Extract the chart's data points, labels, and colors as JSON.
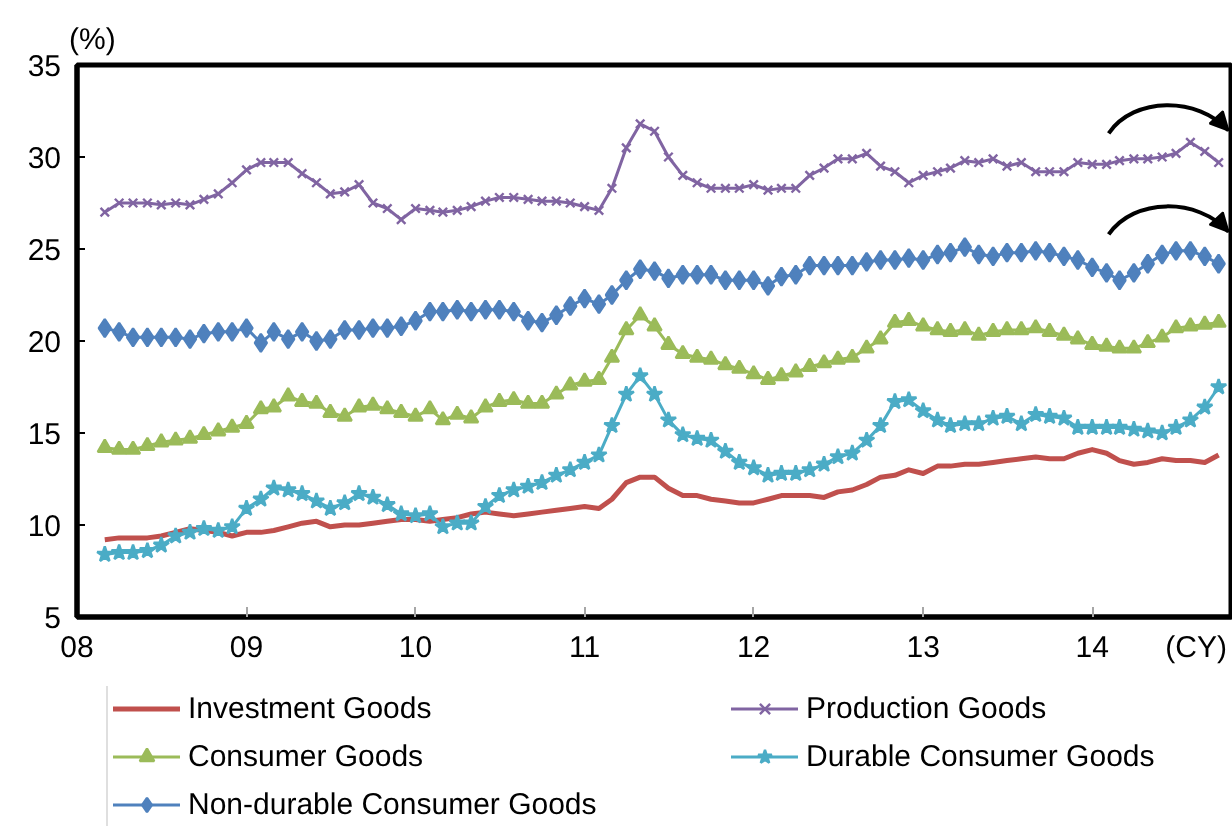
{
  "chart_data": {
    "type": "line",
    "xlabel": "(CY)",
    "ylabel": "(%)",
    "x": [
      "2008-03",
      "2008-04",
      "2008-05",
      "2008-06",
      "2008-07",
      "2008-08",
      "2008-09",
      "2008-10",
      "2008-11",
      "2008-12",
      "2009-01",
      "2009-02",
      "2009-03",
      "2009-04",
      "2009-05",
      "2009-06",
      "2009-07",
      "2009-08",
      "2009-09",
      "2009-10",
      "2009-11",
      "2009-12",
      "2010-01",
      "2010-02",
      "2010-03",
      "2010-04",
      "2010-05",
      "2010-06",
      "2010-07",
      "2010-08",
      "2010-09",
      "2010-10",
      "2010-11",
      "2010-12",
      "2011-01",
      "2011-02",
      "2011-03",
      "2011-04",
      "2011-05",
      "2011-06",
      "2011-07",
      "2011-08",
      "2011-09",
      "2011-10",
      "2011-11",
      "2011-12",
      "2012-01",
      "2012-02",
      "2012-03",
      "2012-04",
      "2012-05",
      "2012-06",
      "2012-07",
      "2012-08",
      "2012-09",
      "2012-10",
      "2012-11",
      "2012-12",
      "2013-01",
      "2013-02",
      "2013-03",
      "2013-04",
      "2013-05",
      "2013-06",
      "2013-07",
      "2013-08",
      "2013-09",
      "2013-10",
      "2013-11",
      "2013-12",
      "2014-01",
      "2014-02",
      "2014-03",
      "2014-04",
      "2014-05",
      "2014-06",
      "2014-07",
      "2014-08",
      "2014-09",
      "2014-10"
    ],
    "series": [
      {
        "name": "Investment Goods",
        "color": "#c0504d",
        "marker": "none",
        "values": [
          9.2,
          9.3,
          9.3,
          9.3,
          9.4,
          9.6,
          9.8,
          9.7,
          9.6,
          9.4,
          9.6,
          9.6,
          9.7,
          9.9,
          10.1,
          10.2,
          9.9,
          10.0,
          10.0,
          10.1,
          10.2,
          10.3,
          10.3,
          10.2,
          10.3,
          10.4,
          10.6,
          10.7,
          10.6,
          10.5,
          10.6,
          10.7,
          10.8,
          10.9,
          11.0,
          10.9,
          11.4,
          12.3,
          12.6,
          12.6,
          12.0,
          11.6,
          11.6,
          11.4,
          11.3,
          11.2,
          11.2,
          11.4,
          11.6,
          11.6,
          11.6,
          11.5,
          11.8,
          11.9,
          12.2,
          12.6,
          12.7,
          13.0,
          12.8,
          13.2,
          13.2,
          13.3,
          13.3,
          13.4,
          13.5,
          13.6,
          13.7,
          13.6,
          13.6,
          13.9,
          14.1,
          13.9,
          13.5,
          13.3,
          13.4,
          13.6,
          13.5,
          13.5,
          13.4,
          13.8
        ]
      },
      {
        "name": "Production Goods",
        "color": "#8064a2",
        "marker": "cross",
        "values": [
          27.0,
          27.5,
          27.5,
          27.5,
          27.4,
          27.5,
          27.4,
          27.7,
          28.0,
          28.6,
          29.3,
          29.7,
          29.7,
          29.7,
          29.1,
          28.6,
          28.0,
          28.1,
          28.5,
          27.5,
          27.2,
          26.6,
          27.2,
          27.1,
          27.0,
          27.1,
          27.3,
          27.6,
          27.8,
          27.8,
          27.7,
          27.6,
          27.6,
          27.5,
          27.3,
          27.1,
          28.3,
          30.5,
          31.8,
          31.4,
          30.0,
          29.0,
          28.6,
          28.3,
          28.3,
          28.3,
          28.5,
          28.2,
          28.3,
          28.3,
          29.0,
          29.4,
          29.9,
          29.9,
          30.2,
          29.5,
          29.2,
          28.6,
          29.0,
          29.2,
          29.4,
          29.8,
          29.7,
          29.9,
          29.5,
          29.7,
          29.2,
          29.2,
          29.2,
          29.7,
          29.6,
          29.6,
          29.8,
          29.9,
          29.9,
          30.0,
          30.2,
          30.8,
          30.3,
          29.7
        ]
      },
      {
        "name": "Consumer Goods",
        "color": "#9bbb59",
        "marker": "triangle",
        "values": [
          14.2,
          14.1,
          14.1,
          14.3,
          14.5,
          14.6,
          14.7,
          14.9,
          15.1,
          15.3,
          15.5,
          16.3,
          16.4,
          17.0,
          16.7,
          16.6,
          16.1,
          15.9,
          16.4,
          16.5,
          16.3,
          16.1,
          15.9,
          16.3,
          15.7,
          16.0,
          15.8,
          16.4,
          16.7,
          16.8,
          16.6,
          16.6,
          17.1,
          17.6,
          17.8,
          17.9,
          19.1,
          20.6,
          21.4,
          20.8,
          19.8,
          19.3,
          19.1,
          19.0,
          18.7,
          18.5,
          18.2,
          17.9,
          18.1,
          18.3,
          18.6,
          18.8,
          19.0,
          19.1,
          19.6,
          20.1,
          21.0,
          21.1,
          20.8,
          20.6,
          20.5,
          20.6,
          20.3,
          20.5,
          20.6,
          20.6,
          20.7,
          20.5,
          20.3,
          20.1,
          19.8,
          19.7,
          19.6,
          19.6,
          19.9,
          20.2,
          20.7,
          20.8,
          20.9,
          21.0
        ]
      },
      {
        "name": "Durable Consumer Goods",
        "color": "#4bacc6",
        "marker": "star",
        "values": [
          8.4,
          8.5,
          8.5,
          8.6,
          8.9,
          9.4,
          9.6,
          9.8,
          9.7,
          9.9,
          10.9,
          11.4,
          12.0,
          11.9,
          11.7,
          11.3,
          10.9,
          11.2,
          11.7,
          11.5,
          11.1,
          10.6,
          10.5,
          10.6,
          9.9,
          10.1,
          10.1,
          11.0,
          11.6,
          11.9,
          12.1,
          12.3,
          12.7,
          13.0,
          13.4,
          13.8,
          15.4,
          17.1,
          18.1,
          17.1,
          15.7,
          14.9,
          14.7,
          14.6,
          14.0,
          13.4,
          13.1,
          12.7,
          12.8,
          12.8,
          13.0,
          13.3,
          13.7,
          13.9,
          14.6,
          15.4,
          16.7,
          16.8,
          16.2,
          15.7,
          15.4,
          15.5,
          15.5,
          15.8,
          15.9,
          15.5,
          16.0,
          15.9,
          15.8,
          15.3,
          15.3,
          15.3,
          15.3,
          15.2,
          15.1,
          15.0,
          15.3,
          15.7,
          16.4,
          17.5
        ]
      },
      {
        "name": "Non-durable Consumer Goods",
        "color": "#4f81bd",
        "marker": "diamond",
        "values": [
          20.7,
          20.5,
          20.2,
          20.2,
          20.2,
          20.2,
          20.1,
          20.4,
          20.5,
          20.5,
          20.7,
          19.9,
          20.5,
          20.1,
          20.5,
          20.0,
          20.1,
          20.6,
          20.6,
          20.7,
          20.7,
          20.8,
          21.1,
          21.6,
          21.6,
          21.7,
          21.6,
          21.7,
          21.7,
          21.6,
          21.1,
          21.0,
          21.4,
          21.9,
          22.3,
          22.0,
          22.5,
          23.3,
          23.9,
          23.8,
          23.4,
          23.6,
          23.6,
          23.6,
          23.3,
          23.3,
          23.3,
          23.0,
          23.5,
          23.6,
          24.1,
          24.1,
          24.1,
          24.1,
          24.3,
          24.4,
          24.4,
          24.5,
          24.4,
          24.7,
          24.8,
          25.1,
          24.7,
          24.6,
          24.8,
          24.8,
          24.9,
          24.8,
          24.6,
          24.4,
          24.0,
          23.7,
          23.3,
          23.7,
          24.2,
          24.7,
          24.9,
          24.9,
          24.6,
          24.2
        ]
      }
    ],
    "xlim": [
      "2008-01",
      "2014-11"
    ],
    "xticks": [
      {
        "value": "2008",
        "label": "08"
      },
      {
        "value": "2009",
        "label": "09"
      },
      {
        "value": "2010",
        "label": "10"
      },
      {
        "value": "2011",
        "label": "11"
      },
      {
        "value": "2012",
        "label": "12"
      },
      {
        "value": "2013",
        "label": "13"
      },
      {
        "value": "2014",
        "label": "14"
      }
    ],
    "ylim": [
      5,
      35
    ],
    "yticks": [
      5,
      10,
      15,
      20,
      25,
      30,
      35
    ],
    "legend": "bottom"
  }
}
